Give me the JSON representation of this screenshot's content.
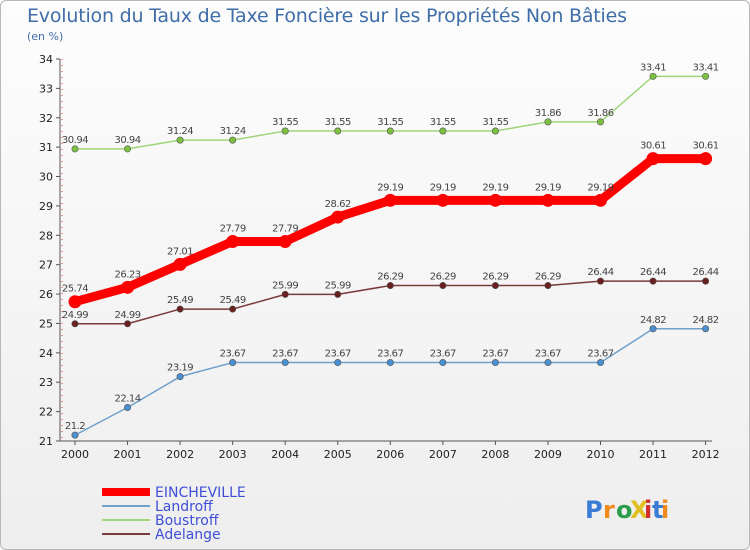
{
  "chart_data": {
    "type": "line",
    "title": "Evolution du Taux de Taxe Foncière sur les Propriétés Non Bâties",
    "subtitle": "(en %)",
    "x": [
      "2000",
      "2001",
      "2002",
      "2003",
      "2004",
      "2005",
      "2006",
      "2007",
      "2008",
      "2009",
      "2010",
      "2011",
      "2012"
    ],
    "ylim": [
      21,
      34
    ],
    "yticks": [
      21,
      22,
      23,
      24,
      25,
      26,
      27,
      28,
      29,
      30,
      31,
      32,
      33,
      34
    ],
    "grid": false,
    "legend_position": "bottom-left",
    "series": [
      {
        "name": "EINCHEVILLE",
        "color": "#ff0000",
        "point_color": "#ff0000",
        "values": [
          25.74,
          26.23,
          27.01,
          27.79,
          27.79,
          28.62,
          29.19,
          29.19,
          29.19,
          29.19,
          29.19,
          30.61,
          30.61
        ],
        "labels": [
          "25.74",
          "26.23",
          "27.01",
          "27.79",
          "27.79",
          "28.62",
          "29.19",
          "29.19",
          "29.19",
          "29.19",
          "29.19",
          "30.61",
          "30.61"
        ]
      },
      {
        "name": "Landroff",
        "color": "#6ea0cc",
        "point_color": "#4a90d0",
        "values": [
          21.2,
          22.14,
          23.19,
          23.67,
          23.67,
          23.67,
          23.67,
          23.67,
          23.67,
          23.67,
          23.67,
          24.82,
          24.82
        ],
        "labels": [
          "21.2",
          "22.14",
          "23.19",
          "23.67",
          "23.67",
          "23.67",
          "23.67",
          "23.67",
          "23.67",
          "23.67",
          "23.67",
          "24.82",
          "24.82"
        ]
      },
      {
        "name": "Boustroff",
        "color": "#9ed67a",
        "point_color": "#7cc040",
        "values": [
          30.94,
          30.94,
          31.24,
          31.24,
          31.55,
          31.55,
          31.55,
          31.55,
          31.55,
          31.86,
          31.86,
          33.41,
          33.41
        ],
        "labels": [
          "30.94",
          "30.94",
          "31.24",
          "31.24",
          "31.55",
          "31.55",
          "31.55",
          "31.55",
          "31.55",
          "31.86",
          "31.86",
          "33.41",
          "33.41"
        ]
      },
      {
        "name": "Adelange",
        "color": "#7a3a3a",
        "point_color": "#6a1f1f",
        "values": [
          24.99,
          24.99,
          25.49,
          25.49,
          25.99,
          25.99,
          26.29,
          26.29,
          26.29,
          26.29,
          26.44,
          26.44,
          26.44
        ],
        "labels": [
          "24.99",
          "24.99",
          "25.49",
          "25.49",
          "25.99",
          "25.99",
          "26.29",
          "26.29",
          "26.29",
          "26.29",
          "26.44",
          "26.44",
          "26.44"
        ]
      }
    ]
  },
  "logo": {
    "text": "ProXiti",
    "colors": [
      "#3a7bd5",
      "#f08a1c",
      "#2a9d4a",
      "#e0c020",
      "#d03030"
    ]
  }
}
